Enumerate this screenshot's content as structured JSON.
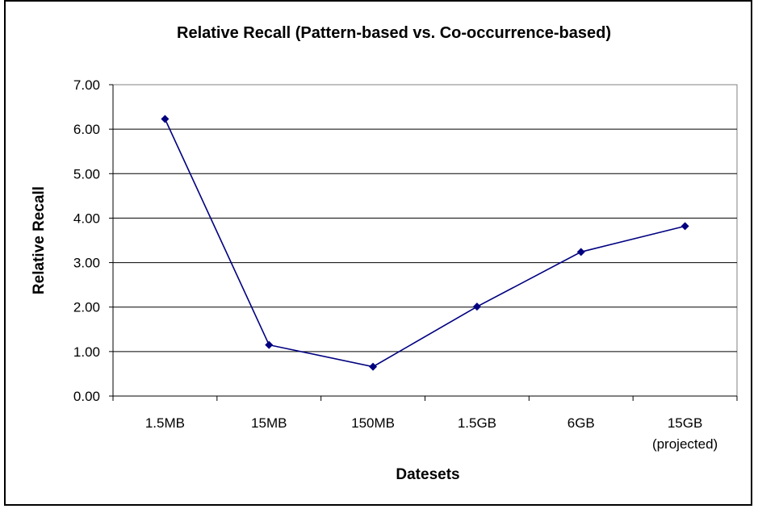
{
  "chart_data": {
    "type": "line",
    "title": "Relative Recall (Pattern-based vs. Co-occurrence-based)",
    "xlabel": "Datesets",
    "ylabel": "Relative Recall",
    "categories": [
      [
        "1.5MB"
      ],
      [
        "15MB"
      ],
      [
        "150MB"
      ],
      [
        "1.5GB"
      ],
      [
        "6GB"
      ],
      [
        "15GB",
        "(projected)"
      ]
    ],
    "series": [
      {
        "values": [
          6.23,
          1.15,
          0.66,
          2.01,
          3.24,
          3.82
        ]
      }
    ],
    "ylim": [
      0,
      7
    ],
    "yticks": [
      "0.00",
      "1.00",
      "2.00",
      "3.00",
      "4.00",
      "5.00",
      "6.00",
      "7.00"
    ],
    "grid": true,
    "legend": "none",
    "colors": {
      "line": "#000080",
      "marker": "#000080",
      "grid": "#000000",
      "plot_border": "#808080"
    }
  }
}
